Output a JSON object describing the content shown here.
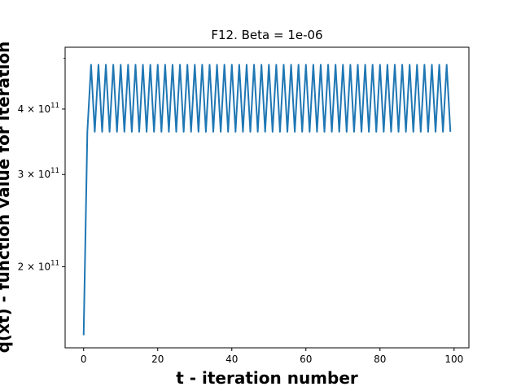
{
  "chart_data": {
    "type": "line",
    "title": "F12. Beta = 1e-06",
    "xlabel": "t - iteration number",
    "ylabel": "q(xt) - function value for iteration",
    "xlim": [
      -5,
      104
    ],
    "ylim": [
      140000000000,
      525000000000
    ],
    "yscale": "log",
    "grid": false,
    "xticks": [
      0,
      20,
      40,
      60,
      80,
      100
    ],
    "xtick_labels": [
      "0",
      "20",
      "40",
      "60",
      "80",
      "100"
    ],
    "yticks": [
      200000000000,
      300000000000,
      400000000000
    ],
    "ytick_labels": [
      {
        "mantissa": "2",
        "exp": "11"
      },
      {
        "mantissa": "3",
        "exp": "11"
      },
      {
        "mantissa": "4",
        "exp": "11"
      }
    ],
    "yminor_ticks": [
      500000000000
    ],
    "series": [
      {
        "color": "#1f77b4",
        "x": [
          0,
          1,
          2,
          3,
          4,
          5,
          6,
          7,
          8,
          9,
          10,
          11,
          12,
          13,
          14,
          15,
          16,
          17,
          18,
          19,
          20,
          21,
          22,
          23,
          24,
          25,
          26,
          27,
          28,
          29,
          30,
          31,
          32,
          33,
          34,
          35,
          36,
          37,
          38,
          39,
          40,
          41,
          42,
          43,
          44,
          45,
          46,
          47,
          48,
          49,
          50,
          51,
          52,
          53,
          54,
          55,
          56,
          57,
          58,
          59,
          60,
          61,
          62,
          63,
          64,
          65,
          66,
          67,
          68,
          69,
          70,
          71,
          72,
          73,
          74,
          75,
          76,
          77,
          78,
          79,
          80,
          81,
          82,
          83,
          84,
          85,
          86,
          87,
          88,
          89,
          90,
          91,
          92,
          93,
          94,
          95,
          96,
          97,
          98,
          99
        ],
        "y": [
          148000000000,
          362000000000,
          486000000000,
          362000000000,
          486000000000,
          362000000000,
          486000000000,
          362000000000,
          486000000000,
          362000000000,
          486000000000,
          362000000000,
          486000000000,
          362000000000,
          486000000000,
          362000000000,
          486000000000,
          362000000000,
          486000000000,
          362000000000,
          486000000000,
          362000000000,
          486000000000,
          362000000000,
          486000000000,
          362000000000,
          486000000000,
          362000000000,
          486000000000,
          362000000000,
          486000000000,
          362000000000,
          486000000000,
          362000000000,
          486000000000,
          362000000000,
          486000000000,
          362000000000,
          486000000000,
          362000000000,
          486000000000,
          362000000000,
          486000000000,
          362000000000,
          486000000000,
          362000000000,
          486000000000,
          362000000000,
          486000000000,
          362000000000,
          486000000000,
          362000000000,
          486000000000,
          362000000000,
          486000000000,
          362000000000,
          486000000000,
          362000000000,
          486000000000,
          362000000000,
          486000000000,
          362000000000,
          486000000000,
          362000000000,
          486000000000,
          362000000000,
          486000000000,
          362000000000,
          486000000000,
          362000000000,
          486000000000,
          362000000000,
          486000000000,
          362000000000,
          486000000000,
          362000000000,
          486000000000,
          362000000000,
          486000000000,
          362000000000,
          486000000000,
          362000000000,
          486000000000,
          362000000000,
          486000000000,
          362000000000,
          486000000000,
          362000000000,
          486000000000,
          362000000000,
          486000000000,
          362000000000,
          486000000000,
          362000000000,
          486000000000,
          362000000000,
          486000000000,
          362000000000,
          486000000000,
          362000000000
        ]
      }
    ]
  }
}
